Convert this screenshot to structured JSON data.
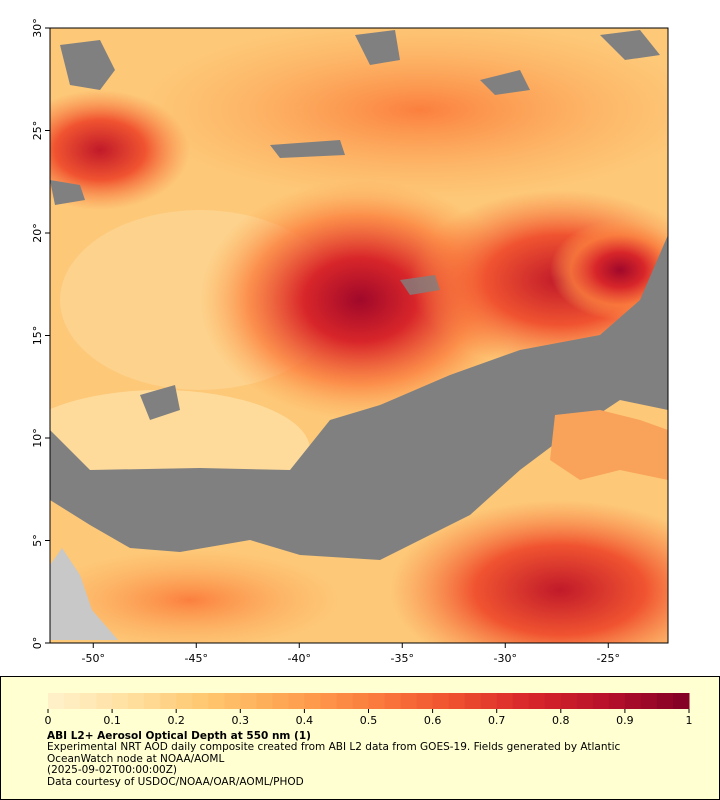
{
  "chart_data": {
    "type": "map",
    "xlim": [
      -52.1,
      -22.1
    ],
    "ylim": [
      0,
      30
    ],
    "xticks": [
      {
        "value": -50,
        "label": "-50°"
      },
      {
        "value": -45,
        "label": "-45°"
      },
      {
        "value": -40,
        "label": "-40°"
      },
      {
        "value": -35,
        "label": "-35°"
      },
      {
        "value": -30,
        "label": "-30°"
      },
      {
        "value": -25,
        "label": "-25°"
      }
    ],
    "yticks": [
      {
        "value": 0,
        "label": "0°"
      },
      {
        "value": 5,
        "label": "5°"
      },
      {
        "value": 10,
        "label": "10°"
      },
      {
        "value": 15,
        "label": "15°"
      },
      {
        "value": 20,
        "label": "20°"
      },
      {
        "value": 25,
        "label": "25°"
      },
      {
        "value": 30,
        "label": "30°"
      }
    ],
    "colorbar": {
      "lim": [
        0,
        1
      ],
      "ticks": [
        0,
        0.1,
        0.2,
        0.3,
        0.4,
        0.5,
        0.6,
        0.7,
        0.8,
        0.9,
        1
      ],
      "colors": [
        "#fff2cc",
        "#ffe0a0",
        "#ffc66e",
        "#fea552",
        "#fb7f3e",
        "#f05330",
        "#d8262a",
        "#b5102a",
        "#800026"
      ]
    },
    "title": "ABI L2+ Aerosol Optical Depth at 550 nm (1)",
    "description": "Experimental NRT AOD daily composite created from ABI L2 data from GOES-19. Fields generated by Atlantic OceanWatch node at NOAA/AOML",
    "date": "(2025-09-02T00:00:00Z)",
    "credit": "Data courtesy of USDOC/NOAA/OAR/AOML/PHOD"
  }
}
